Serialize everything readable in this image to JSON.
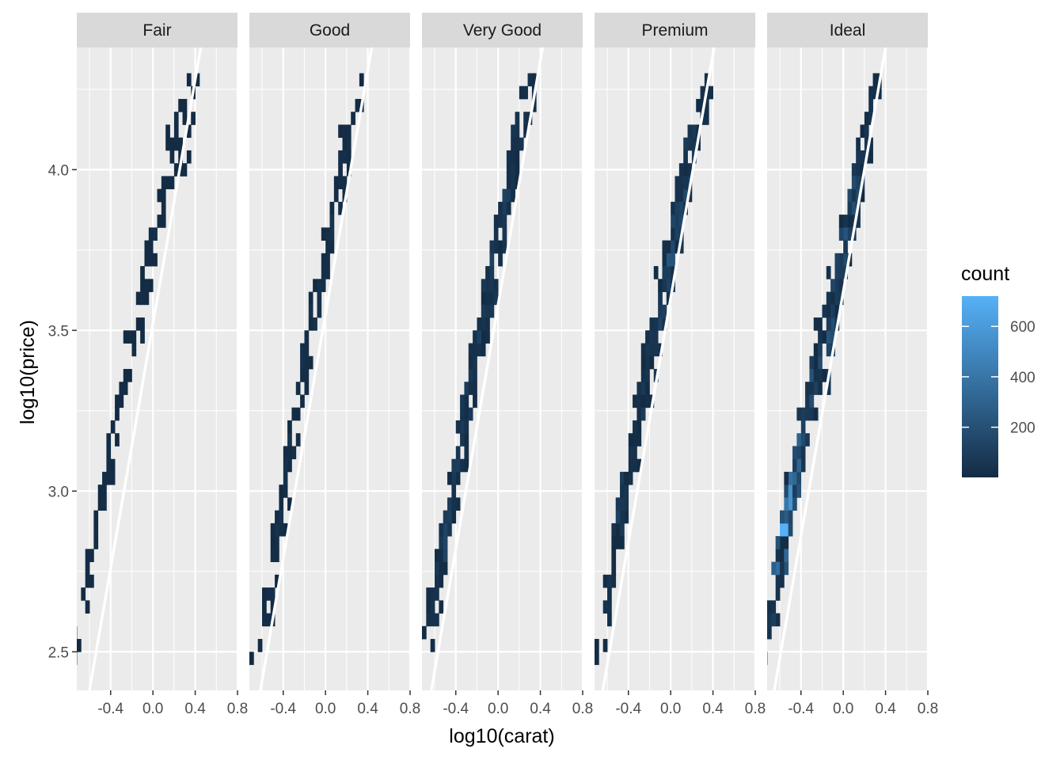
{
  "chart_data": {
    "type": "heatmap",
    "subtype": "faceted-binned-2d-with-regression-line",
    "title": "",
    "xlabel": "log10(carat)",
    "ylabel": "log10(price)",
    "xlim": [
      -0.72,
      0.8
    ],
    "ylim": [
      2.38,
      4.38
    ],
    "x_ticks": [
      -0.4,
      0.0,
      0.4,
      0.8
    ],
    "x_tick_labels": [
      "-0.4",
      "0.0",
      "0.4",
      "0.8"
    ],
    "y_ticks": [
      2.5,
      3.0,
      3.5,
      4.0
    ],
    "y_tick_labels": [
      "2.5",
      "3.0",
      "3.5",
      "4.0"
    ],
    "grid": true,
    "bin_width": [
      0.04,
      0.04
    ],
    "legend": {
      "title": "count",
      "placement": "right",
      "range": [
        1,
        720
      ],
      "breaks": [
        200,
        400,
        600
      ],
      "break_labels": [
        "200",
        "400",
        "600"
      ],
      "color_low": "#132b43",
      "color_high": "#56b1f7"
    },
    "colors": {
      "panel_bg": "#ebebeb",
      "grid_major": "#ffffff",
      "strip_bg": "#d9d9d9",
      "fit_line": "#ffffff"
    },
    "facets": [
      {
        "label": "Fair",
        "fit": {
          "intercept": 3.52,
          "slope": 1.9
        },
        "density": [
          {
            "x": -0.7,
            "y": 2.55,
            "count": 3
          },
          {
            "x": -0.6,
            "y": 2.75,
            "count": 12
          },
          {
            "x": -0.5,
            "y": 2.95,
            "count": 22
          },
          {
            "x": -0.4,
            "y": 3.1,
            "count": 18
          },
          {
            "x": -0.3,
            "y": 3.3,
            "count": 15
          },
          {
            "x": -0.2,
            "y": 3.45,
            "count": 14
          },
          {
            "x": -0.1,
            "y": 3.6,
            "count": 16
          },
          {
            "x": 0.0,
            "y": 3.75,
            "count": 18
          },
          {
            "x": 0.1,
            "y": 3.9,
            "count": 14
          },
          {
            "x": 0.2,
            "y": 4.05,
            "count": 10
          },
          {
            "x": 0.3,
            "y": 4.2,
            "count": 6
          },
          {
            "x": 0.4,
            "y": 4.25,
            "count": 3
          }
        ]
      },
      {
        "label": "Good",
        "fit": {
          "intercept": 3.55,
          "slope": 1.9
        },
        "density": [
          {
            "x": -0.6,
            "y": 2.55,
            "count": 8
          },
          {
            "x": -0.5,
            "y": 2.75,
            "count": 30
          },
          {
            "x": -0.4,
            "y": 2.95,
            "count": 45
          },
          {
            "x": -0.3,
            "y": 3.2,
            "count": 40
          },
          {
            "x": -0.2,
            "y": 3.4,
            "count": 35
          },
          {
            "x": -0.1,
            "y": 3.55,
            "count": 40
          },
          {
            "x": 0.0,
            "y": 3.75,
            "count": 50
          },
          {
            "x": 0.1,
            "y": 3.9,
            "count": 35
          },
          {
            "x": 0.2,
            "y": 4.05,
            "count": 20
          },
          {
            "x": 0.3,
            "y": 4.2,
            "count": 10
          }
        ]
      },
      {
        "label": "Very Good",
        "fit": {
          "intercept": 3.58,
          "slope": 1.9
        },
        "density": [
          {
            "x": -0.6,
            "y": 2.65,
            "count": 40
          },
          {
            "x": -0.5,
            "y": 2.85,
            "count": 110
          },
          {
            "x": -0.4,
            "y": 3.05,
            "count": 120
          },
          {
            "x": -0.3,
            "y": 3.25,
            "count": 90
          },
          {
            "x": -0.2,
            "y": 3.45,
            "count": 100
          },
          {
            "x": -0.1,
            "y": 3.6,
            "count": 140
          },
          {
            "x": 0.0,
            "y": 3.75,
            "count": 170
          },
          {
            "x": 0.1,
            "y": 3.95,
            "count": 110
          },
          {
            "x": 0.2,
            "y": 4.1,
            "count": 60
          },
          {
            "x": 0.3,
            "y": 4.2,
            "count": 25
          }
        ]
      },
      {
        "label": "Premium",
        "fit": {
          "intercept": 3.6,
          "slope": 1.9
        },
        "density": [
          {
            "x": -0.6,
            "y": 2.65,
            "count": 30
          },
          {
            "x": -0.5,
            "y": 2.85,
            "count": 130
          },
          {
            "x": -0.4,
            "y": 3.05,
            "count": 110
          },
          {
            "x": -0.3,
            "y": 3.25,
            "count": 85
          },
          {
            "x": -0.2,
            "y": 3.45,
            "count": 80
          },
          {
            "x": -0.1,
            "y": 3.55,
            "count": 110
          },
          {
            "x": 0.0,
            "y": 3.75,
            "count": 200
          },
          {
            "x": 0.1,
            "y": 3.9,
            "count": 150
          },
          {
            "x": 0.2,
            "y": 4.05,
            "count": 90
          },
          {
            "x": 0.3,
            "y": 4.2,
            "count": 45
          }
        ]
      },
      {
        "label": "Ideal",
        "fit": {
          "intercept": 3.62,
          "slope": 1.9
        },
        "density": [
          {
            "x": -0.65,
            "y": 2.65,
            "count": 60
          },
          {
            "x": -0.55,
            "y": 2.9,
            "count": 650
          },
          {
            "x": -0.45,
            "y": 3.05,
            "count": 380
          },
          {
            "x": -0.35,
            "y": 3.25,
            "count": 250
          },
          {
            "x": -0.25,
            "y": 3.4,
            "count": 170
          },
          {
            "x": -0.1,
            "y": 3.55,
            "count": 200
          },
          {
            "x": 0.0,
            "y": 3.75,
            "count": 260
          },
          {
            "x": 0.1,
            "y": 3.9,
            "count": 160
          },
          {
            "x": 0.2,
            "y": 4.05,
            "count": 80
          },
          {
            "x": 0.3,
            "y": 4.2,
            "count": 30
          }
        ]
      }
    ]
  }
}
